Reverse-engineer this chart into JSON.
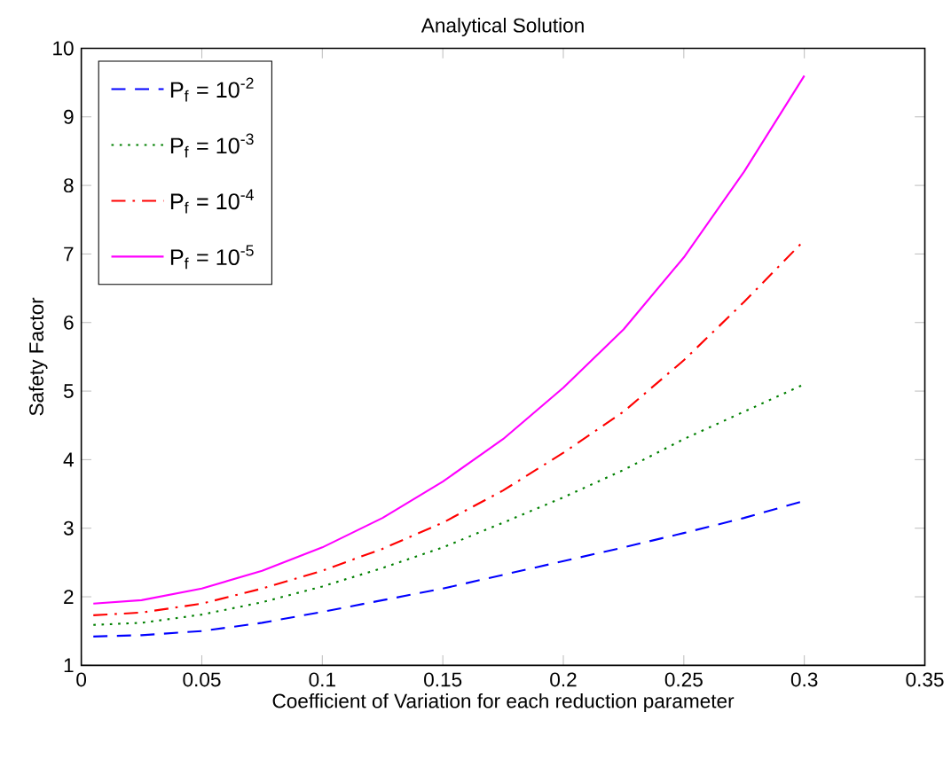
{
  "chart_data": {
    "type": "line",
    "title": "Analytical Solution",
    "xlabel": "Coefficient of Variation for each reduction parameter",
    "ylabel": "Safety Factor",
    "x": [
      0.005,
      0.025,
      0.05,
      0.075,
      0.1,
      0.125,
      0.15,
      0.175,
      0.2,
      0.225,
      0.25,
      0.275,
      0.3
    ],
    "series": [
      {
        "name": "P$_{f}$ = 10$^{-2}$",
        "color": "#0000ff",
        "line_style": "dashed",
        "values": [
          1.42,
          1.44,
          1.5,
          1.62,
          1.78,
          1.95,
          2.12,
          2.32,
          2.52,
          2.72,
          2.93,
          3.15,
          3.4
        ]
      },
      {
        "name": "P$_{f}$ = 10$^{-3}$",
        "color": "#008000",
        "line_style": "dotted",
        "values": [
          1.59,
          1.62,
          1.74,
          1.92,
          2.15,
          2.42,
          2.72,
          3.08,
          3.45,
          3.85,
          4.3,
          4.7,
          5.1
        ]
      },
      {
        "name": "P$_{f}$ = 10$^{-4}$",
        "color": "#ff0000",
        "line_style": "dashdot",
        "values": [
          1.73,
          1.77,
          1.9,
          2.12,
          2.38,
          2.7,
          3.08,
          3.55,
          4.1,
          4.7,
          5.45,
          6.3,
          7.2
        ]
      },
      {
        "name": "P$_{f}$ = 10$^{-5}$",
        "color": "#ff00ff",
        "line_style": "solid",
        "values": [
          1.9,
          1.95,
          2.12,
          2.38,
          2.72,
          3.15,
          3.68,
          4.3,
          5.05,
          5.9,
          6.95,
          8.2,
          9.6
        ]
      }
    ],
    "xlim": [
      0,
      0.35
    ],
    "ylim": [
      1,
      10
    ],
    "xticks": [
      0,
      0.05,
      0.1,
      0.15,
      0.2,
      0.25,
      0.3,
      0.35
    ],
    "yticks": [
      1,
      2,
      3,
      4,
      5,
      6,
      7,
      8,
      9,
      10
    ],
    "grid": false,
    "legend": "top left",
    "marker": "none"
  }
}
